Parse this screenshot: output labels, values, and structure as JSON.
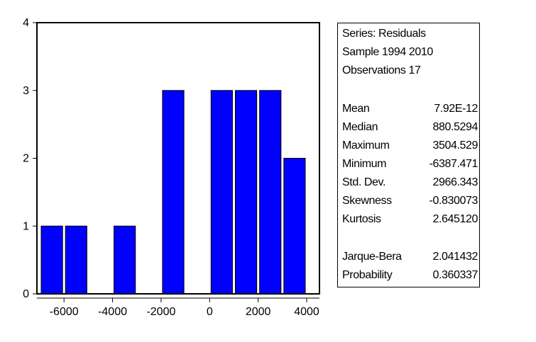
{
  "chart_data": {
    "type": "bar",
    "title": "",
    "xlabel": "",
    "ylabel": "",
    "xlim": [
      -7000,
      4000
    ],
    "ylim": [
      0,
      4
    ],
    "bin_width": 1000,
    "bins": [
      {
        "start": -7000,
        "end": -6000,
        "count": 1
      },
      {
        "start": -6000,
        "end": -5000,
        "count": 1
      },
      {
        "start": -5000,
        "end": -4000,
        "count": 0
      },
      {
        "start": -4000,
        "end": -3000,
        "count": 1
      },
      {
        "start": -3000,
        "end": -2000,
        "count": 0
      },
      {
        "start": -2000,
        "end": -1000,
        "count": 3
      },
      {
        "start": -1000,
        "end": 0,
        "count": 0
      },
      {
        "start": 0,
        "end": 1000,
        "count": 3
      },
      {
        "start": 1000,
        "end": 2000,
        "count": 3
      },
      {
        "start": 2000,
        "end": 3000,
        "count": 3
      },
      {
        "start": 3000,
        "end": 4000,
        "count": 2
      }
    ],
    "x_ticks": [
      -6000,
      -4000,
      -2000,
      0,
      2000,
      4000
    ],
    "x_tick_labels": [
      "-6000",
      "-4000",
      "-2000",
      "0",
      "2000",
      "4000"
    ],
    "y_ticks": [
      0,
      1,
      2,
      3,
      4
    ],
    "y_tick_labels": [
      "0",
      "1",
      "2",
      "3",
      "4"
    ],
    "grid": false,
    "bar_color": "#0000FF",
    "bar_edge_color": "#000000"
  },
  "stats": {
    "series": "Series: Residuals",
    "sample": "Sample 1994 2010",
    "observations": "Observations 17",
    "rows": [
      {
        "label": "Mean",
        "value": "7.92E-12"
      },
      {
        "label": "Median",
        "value": "880.5294"
      },
      {
        "label": "Maximum",
        "value": "3504.529"
      },
      {
        "label": "Minimum",
        "value": "-6387.471"
      },
      {
        "label": "Std. Dev.",
        "value": "2966.343"
      },
      {
        "label": "Skewness",
        "value": "-0.830073"
      },
      {
        "label": "Kurtosis",
        "value": "2.645120"
      }
    ],
    "test_rows": [
      {
        "label": "Jarque-Bera",
        "value": "2.041432"
      },
      {
        "label": "Probability",
        "value": "0.360337"
      }
    ]
  }
}
